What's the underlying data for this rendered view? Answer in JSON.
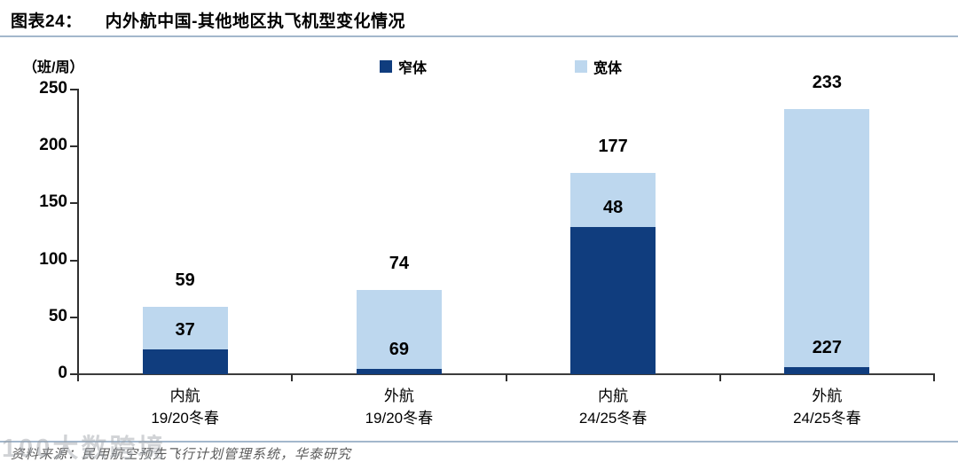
{
  "header": {
    "title_prefix": "图表24：",
    "title": "内外航中国-其他地区执飞机型变化情况"
  },
  "chart_data": {
    "type": "bar",
    "stacked": true,
    "unit_label": "（班/周）",
    "categories": [
      [
        "内航",
        "19/20冬春"
      ],
      [
        "外航",
        "19/20冬春"
      ],
      [
        "内航",
        "24/25冬春"
      ],
      [
        "外航",
        "24/25冬春"
      ]
    ],
    "series": [
      {
        "name": "窄体",
        "color": "#103d7e",
        "values": [
          22,
          5,
          129,
          6
        ]
      },
      {
        "name": "宽体",
        "color": "#bdd7ee",
        "values": [
          37,
          69,
          48,
          227
        ]
      }
    ],
    "total_labels": [
      "59",
      "74",
      "177",
      "233"
    ],
    "inside_labels": [
      "37",
      "69",
      "48",
      "227"
    ],
    "yticks": [
      0,
      50,
      100,
      150,
      200,
      250
    ],
    "ylim": [
      0,
      250
    ],
    "grid": false,
    "legend_position": "top-center"
  },
  "footer": {
    "source": "资料来源：民用航空预先飞行计划管理系统，华泰研究",
    "watermark": "100大数跨境"
  },
  "colors": {
    "narrow_body": "#103d7e",
    "wide_body": "#bdd7ee",
    "rule": "#a3b7cc",
    "axis": "#3c3c3c",
    "source_text": "#5a5a5a"
  }
}
